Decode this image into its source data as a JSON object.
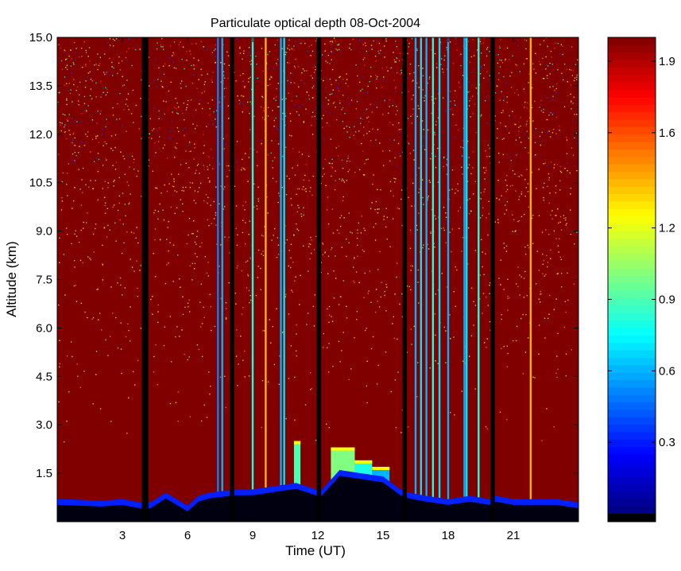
{
  "chart_data": {
    "type": "heatmap",
    "title": "Particulate optical depth  08-Oct-2004",
    "xlabel": "Time (UT)",
    "ylabel": "Altitude (km)",
    "xlim": [
      0,
      24
    ],
    "ylim": [
      0,
      15
    ],
    "xticks": [
      3,
      6,
      9,
      12,
      15,
      18,
      21
    ],
    "xtick_labels": [
      "3",
      "6",
      "9",
      "12",
      "15",
      "18",
      "21"
    ],
    "yticks": [
      1.5,
      3.0,
      4.5,
      6.0,
      7.5,
      9.0,
      10.5,
      12.0,
      13.5,
      15.0
    ],
    "ytick_labels": [
      "1.5",
      "3.0",
      "4.5",
      "6.0",
      "7.5",
      "9.0",
      "10.5",
      "12.0",
      "13.5",
      "15.0"
    ],
    "colorbar": {
      "ticks": [
        0.3,
        0.6,
        0.9,
        1.2,
        1.6,
        1.9
      ],
      "tick_labels": [
        "0.3",
        "0.6",
        "0.9",
        "1.2",
        "1.6",
        "1.9"
      ],
      "range": [
        0,
        2.0
      ],
      "colormap": "jet"
    },
    "data_gaps_hours": [
      [
        3.9,
        4.2
      ],
      [
        7.95,
        8.15
      ],
      [
        11.95,
        12.15
      ],
      [
        15.9,
        16.1
      ],
      [
        19.95,
        20.15
      ]
    ],
    "surface_layer_top_km": [
      [
        0.0,
        0.7
      ],
      [
        1.0,
        0.68
      ],
      [
        2.0,
        0.65
      ],
      [
        3.0,
        0.7
      ],
      [
        3.8,
        0.6
      ],
      [
        4.3,
        0.6
      ],
      [
        5.0,
        0.9
      ],
      [
        6.0,
        0.5
      ],
      [
        6.5,
        0.8
      ],
      [
        7.0,
        0.9
      ],
      [
        8.2,
        1.0
      ],
      [
        9.0,
        1.0
      ],
      [
        10.0,
        1.1
      ],
      [
        11.0,
        1.2
      ],
      [
        11.9,
        1.0
      ],
      [
        12.2,
        1.0
      ],
      [
        13.0,
        1.6
      ],
      [
        14.0,
        1.5
      ],
      [
        15.0,
        1.4
      ],
      [
        15.8,
        1.0
      ],
      [
        16.2,
        0.9
      ],
      [
        17.0,
        0.8
      ],
      [
        18.0,
        0.7
      ],
      [
        19.0,
        0.8
      ],
      [
        19.9,
        0.7
      ],
      [
        20.2,
        0.8
      ],
      [
        21.0,
        0.7
      ],
      [
        22.0,
        0.7
      ],
      [
        23.0,
        0.7
      ],
      [
        24.0,
        0.6
      ]
    ],
    "elevated_layers": [
      {
        "time": [
          10.9,
          11.2
        ],
        "top_km": 2.5,
        "value": 0.9
      },
      {
        "time": [
          12.6,
          13.7
        ],
        "top_km": 2.3,
        "value": 1.0
      },
      {
        "time": [
          13.7,
          14.5
        ],
        "top_km": 1.9,
        "value": 0.8
      },
      {
        "time": [
          14.5,
          15.3
        ],
        "top_km": 1.7,
        "value": 0.6
      }
    ],
    "vertical_streaks": [
      {
        "time": 7.4,
        "value": 0.5
      },
      {
        "time": 7.6,
        "value": 0.6
      },
      {
        "time": 9.0,
        "value": 0.8
      },
      {
        "time": 9.6,
        "value": 1.4
      },
      {
        "time": 10.3,
        "value": 0.6
      },
      {
        "time": 10.45,
        "value": 0.7
      },
      {
        "time": 16.5,
        "value": 0.6
      },
      {
        "time": 16.75,
        "value": 0.7
      },
      {
        "time": 17.0,
        "value": 0.6
      },
      {
        "time": 17.3,
        "value": 0.8
      },
      {
        "time": 17.6,
        "value": 0.7
      },
      {
        "time": 18.0,
        "value": 0.6
      },
      {
        "time": 18.75,
        "value": 0.6
      },
      {
        "time": 18.85,
        "value": 0.7
      },
      {
        "time": 19.4,
        "value": 0.8
      },
      {
        "time": 21.8,
        "value": 1.4
      }
    ],
    "background_value": 2.0
  }
}
